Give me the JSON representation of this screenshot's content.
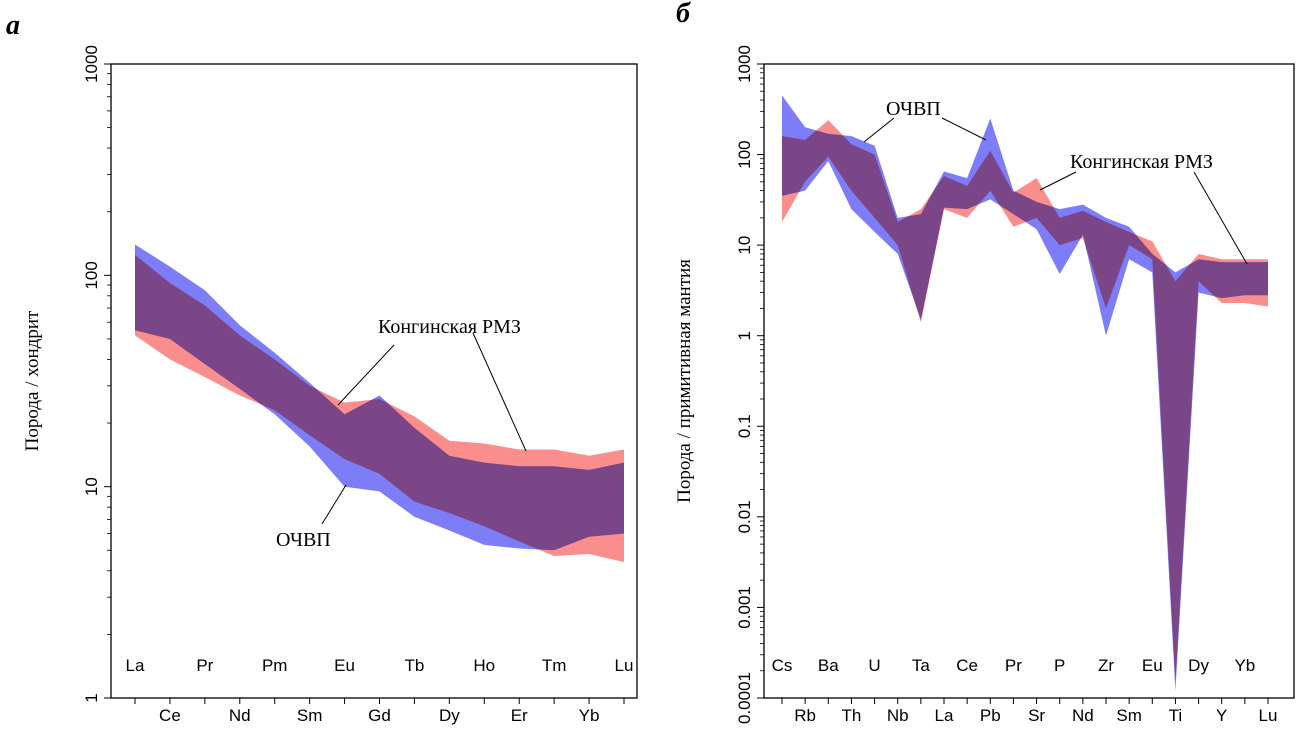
{
  "colors": {
    "ochvp": "#6f6ff6",
    "kongin": "#f9726f",
    "overlap": "#b83b78"
  },
  "chart_data": [
    {
      "type": "area",
      "panel_label": "а",
      "ylabel": "Порода / хондрит",
      "yscale": "log",
      "ylim": [
        1,
        1000
      ],
      "yticks": [
        "1",
        "10",
        "100",
        "1000"
      ],
      "top_tick_labels": [
        "La",
        "Pr",
        "Pm",
        "Eu",
        "Tb",
        "Ho",
        "Tm",
        "Lu"
      ],
      "bottom_tick_labels": [
        "Ce",
        "Nd",
        "Sm",
        "Gd",
        "Dy",
        "Er",
        "Yb"
      ],
      "categories": [
        "La",
        "Ce",
        "Pr",
        "Nd",
        "Pm",
        "Sm",
        "Eu",
        "Gd",
        "Tb",
        "Dy",
        "Ho",
        "Er",
        "Tm",
        "Yb",
        "Lu"
      ],
      "series": [
        {
          "name": "ОЧВП",
          "min": [
            55,
            50,
            38,
            29,
            22,
            15.5,
            10,
            9.5,
            7.2,
            6.2,
            5.3,
            5.1,
            5.0,
            5.8,
            6.0
          ],
          "max": [
            140,
            110,
            85,
            58,
            43,
            31,
            22,
            27,
            19,
            14,
            13,
            12.5,
            12.5,
            12,
            13
          ]
        },
        {
          "name": "Конгинская РМЗ",
          "min": [
            52,
            40,
            33,
            27,
            23,
            17.5,
            13.5,
            11.5,
            8.5,
            7.5,
            6.5,
            5.5,
            4.7,
            4.8,
            4.4
          ],
          "max": [
            125,
            92,
            72,
            52,
            40,
            30,
            25,
            26,
            21.5,
            16.5,
            16,
            15,
            15,
            14,
            15
          ]
        }
      ],
      "annotations": [
        {
          "text": "Конгинская РМЗ"
        },
        {
          "text": "ОЧВП"
        }
      ]
    },
    {
      "type": "area",
      "panel_label": "б",
      "ylabel": "Порода / примитивная мантия",
      "yscale": "log",
      "ylim": [
        0.0001,
        1000
      ],
      "yticks": [
        "0.0001",
        "0.001",
        "0.01",
        "0.1",
        "1",
        "10",
        "100",
        "1000"
      ],
      "top_tick_labels": [
        "Cs",
        "Ba",
        "U",
        "Ta",
        "Ce",
        "Pr",
        "P",
        "Zr",
        "Eu",
        "Dy",
        "Yb"
      ],
      "bottom_tick_labels": [
        "Rb",
        "Th",
        "Nb",
        "La",
        "Pb",
        "Sr",
        "Nd",
        "Sm",
        "Ti",
        "Y",
        "Lu"
      ],
      "categories": [
        "Cs",
        "Rb",
        "Ba",
        "Th",
        "U",
        "Nb",
        "Ta",
        "La",
        "Ce",
        "Pb",
        "Pr",
        "Sr",
        "P",
        "Nd",
        "Zr",
        "Sm",
        "Eu",
        "Ti",
        "Dy",
        "Y",
        "Yb",
        "Lu"
      ],
      "series": [
        {
          "name": "ОЧВП",
          "min": [
            35,
            40,
            85,
            25,
            14,
            8,
            1.5,
            26,
            25,
            32,
            22,
            15,
            4.8,
            13,
            1.0,
            7,
            5,
            0.00012,
            3,
            2.6,
            2.8,
            2.8
          ],
          "max": [
            450,
            200,
            170,
            160,
            125,
            20,
            22,
            65,
            55,
            250,
            40,
            30,
            25,
            28,
            20,
            16,
            8,
            5,
            7,
            6.5,
            6.5,
            6.5
          ]
        },
        {
          "name": "Конгинская РМЗ",
          "min": [
            18,
            50,
            95,
            40,
            20,
            10,
            1.4,
            25,
            20,
            40,
            16,
            20,
            10,
            12,
            2,
            10,
            7,
            0.00015,
            4,
            2.3,
            2.3,
            2.1
          ],
          "max": [
            160,
            145,
            240,
            130,
            100,
            18,
            25,
            58,
            45,
            110,
            38,
            55,
            20,
            24,
            18,
            14,
            11,
            4,
            8,
            7,
            7,
            7
          ]
        }
      ],
      "annotations": [
        {
          "text": "ОЧВП"
        },
        {
          "text": "Конгинская РМЗ"
        }
      ]
    }
  ]
}
